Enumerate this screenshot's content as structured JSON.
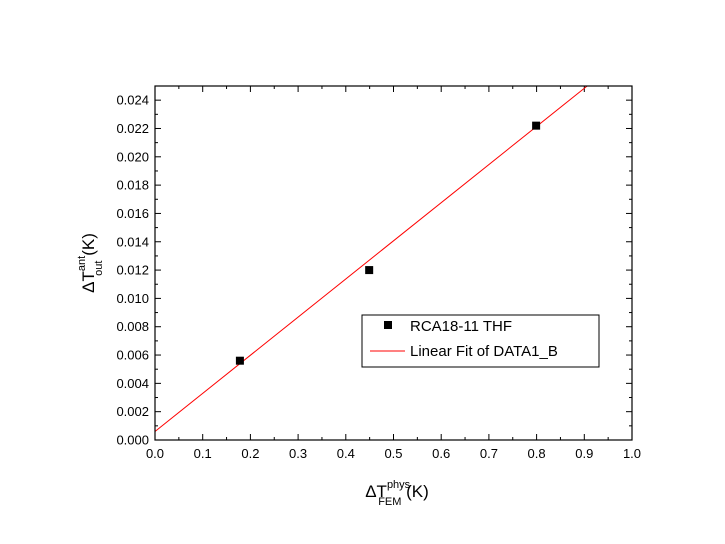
{
  "chart_data": {
    "type": "scatter",
    "title": "",
    "xlabel": {
      "main": "ΔT",
      "sup": "phys",
      "sub": "FEM",
      "unit": " (K)"
    },
    "ylabel": {
      "main": "ΔT",
      "sup": "ant",
      "sub": "out",
      "unit": " (K)"
    },
    "xlim": [
      0.0,
      1.0
    ],
    "ylim": [
      0.0,
      0.025
    ],
    "x_ticks": [
      "0.0",
      "0.1",
      "0.2",
      "0.3",
      "0.4",
      "0.5",
      "0.6",
      "0.7",
      "0.8",
      "0.9",
      "1.0"
    ],
    "y_ticks": [
      "0.000",
      "0.002",
      "0.004",
      "0.006",
      "0.008",
      "0.010",
      "0.012",
      "0.014",
      "0.016",
      "0.018",
      "0.020",
      "0.022",
      "0.024"
    ],
    "grid": false,
    "legend_position": "center-right",
    "series": [
      {
        "name": "RCA18-11 THF",
        "kind": "scatter",
        "marker": "square",
        "color": "#000000",
        "x": [
          0.178,
          0.449,
          0.799
        ],
        "y": [
          0.0056,
          0.012,
          0.0222
        ]
      },
      {
        "name": "Linear Fit of DATA1_B",
        "kind": "line",
        "color": "#ff0000",
        "x": [
          0.0,
          0.906
        ],
        "y": [
          0.0006,
          0.025
        ]
      }
    ]
  }
}
